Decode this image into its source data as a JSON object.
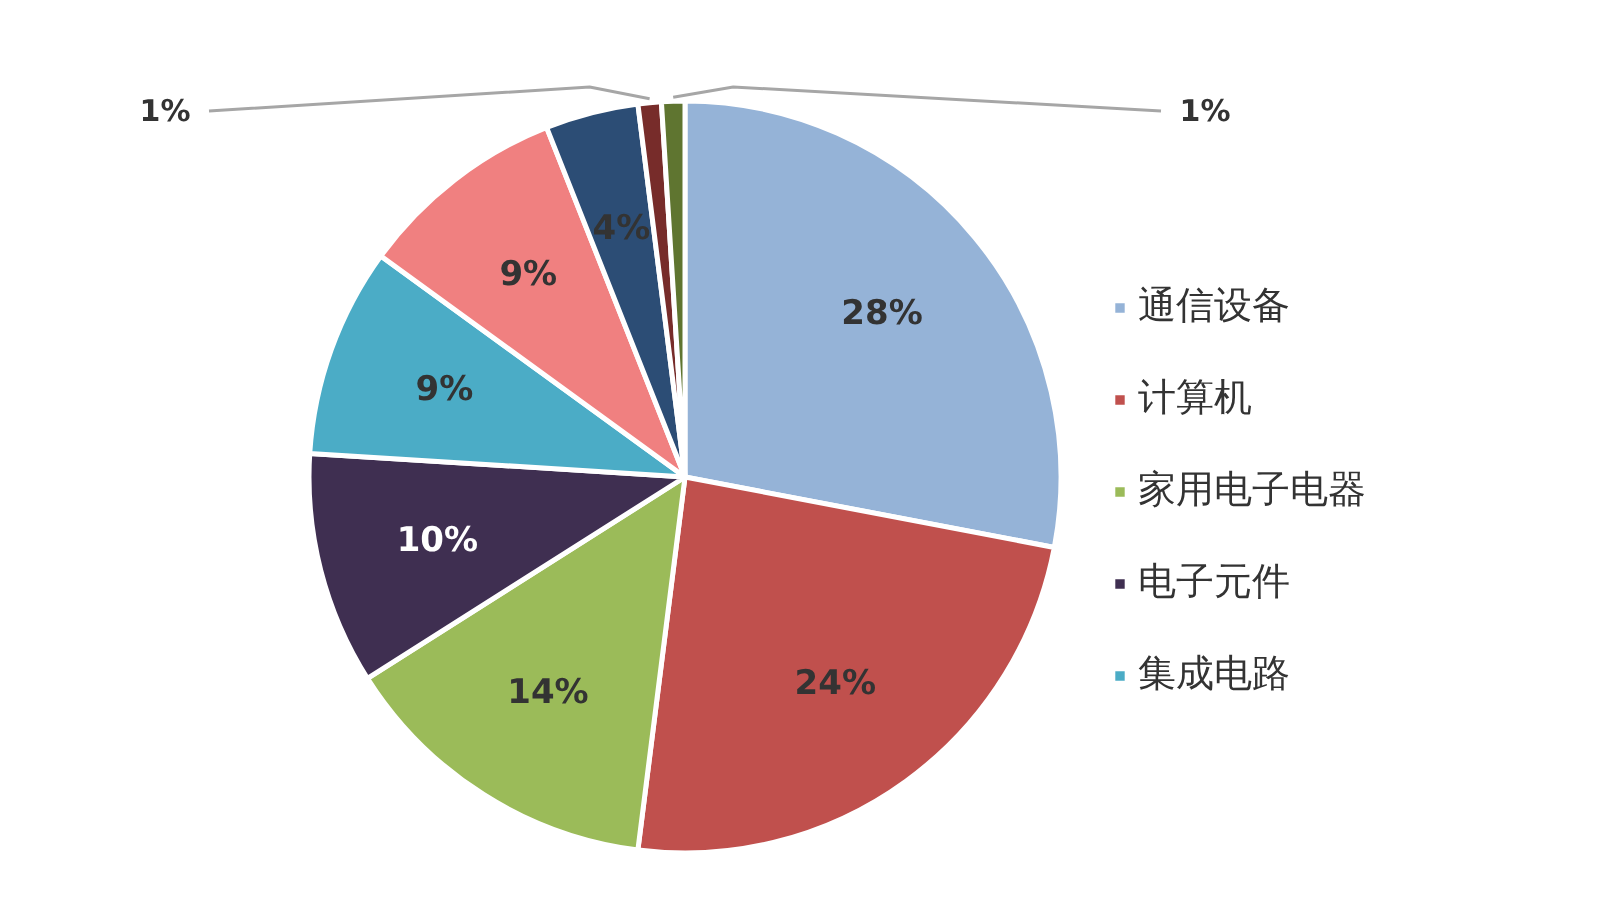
{
  "chart_data": {
    "type": "pie",
    "categories": [
      "通信设备",
      "计算机",
      "家用电子电器",
      "电子元件",
      "集成电路",
      null,
      null,
      null,
      null
    ],
    "values": [
      28,
      24,
      14,
      10,
      9,
      9,
      4,
      1,
      1
    ],
    "colors": [
      "#95b3d7",
      "#c0504d",
      "#9bbb59",
      "#3f2f51",
      "#4bacc6",
      "#f08080",
      "#2c4d75",
      "#772c2a",
      "#5f7530"
    ],
    "value_labels": [
      "28%",
      "24%",
      "14%",
      "10%",
      "9%",
      "9%",
      "4%",
      "1%",
      "1%"
    ],
    "legend": "right"
  }
}
